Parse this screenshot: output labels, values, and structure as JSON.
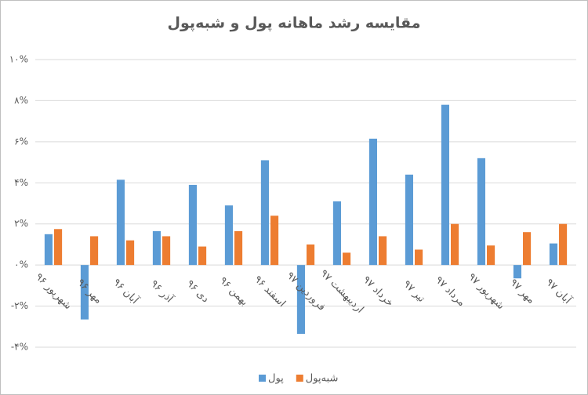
{
  "chart_data": {
    "type": "bar",
    "title": "مقایسه رشد ماهانه پول و شبه‌پول",
    "categories": [
      "شهریور ۹۶",
      "مهر ۹۶",
      "آبان ۹۶",
      "آذر ۹۶",
      "دی ۹۶",
      "بهمن ۹۶",
      "اسفند ۹۶",
      "فروردین ۹۷",
      "اردیبهشت ۹۷",
      "خرداد ۹۷",
      "تیر ۹۷",
      "مرداد ۹۷",
      "شهریور ۹۷",
      "مهر ۹۷",
      "آبان ۹۷"
    ],
    "series": [
      {
        "name": "پول",
        "color": "#5b9bd5",
        "values": [
          1.5,
          -2.65,
          4.15,
          1.65,
          3.9,
          2.9,
          5.1,
          -3.35,
          3.1,
          6.15,
          4.4,
          7.8,
          5.2,
          -0.65,
          1.05
        ]
      },
      {
        "name": "شبه‌پول",
        "color": "#ed7d31",
        "values": [
          1.75,
          1.4,
          1.2,
          1.4,
          0.9,
          1.65,
          2.4,
          1.0,
          0.6,
          1.4,
          0.75,
          2.0,
          0.95,
          1.6,
          2.0
        ]
      }
    ],
    "ylim": [
      -4,
      10
    ],
    "yticks": [
      {
        "value": -4,
        "label": "-۴%"
      },
      {
        "value": -2,
        "label": "-۲%"
      },
      {
        "value": 0,
        "label": "۰%"
      },
      {
        "value": 2,
        "label": "۲%"
      },
      {
        "value": 4,
        "label": "۴%"
      },
      {
        "value": 6,
        "label": "۶%"
      },
      {
        "value": 8,
        "label": "۸%"
      },
      {
        "value": 10,
        "label": "۱۰%"
      }
    ],
    "grid": true
  }
}
